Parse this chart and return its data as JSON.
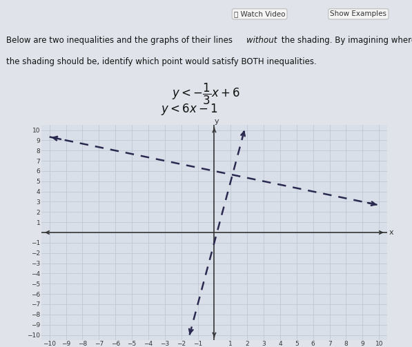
{
  "line1_slope": -0.3333333333333333,
  "line1_intercept": 6,
  "line2_slope": 6,
  "line2_intercept": -1,
  "xlim": [
    -10.5,
    10.5
  ],
  "ylim": [
    -10.5,
    10.5
  ],
  "xticks": [
    -10,
    -9,
    -8,
    -7,
    -6,
    -5,
    -4,
    -3,
    -2,
    -1,
    1,
    2,
    3,
    4,
    5,
    6,
    7,
    8,
    9,
    10
  ],
  "yticks": [
    -10,
    -9,
    -8,
    -7,
    -6,
    -5,
    -4,
    -3,
    -2,
    -1,
    1,
    2,
    3,
    4,
    5,
    6,
    7,
    8,
    9,
    10
  ],
  "grid_color": "#b8c4d0",
  "axis_color": "#333333",
  "line_color": "#2a2a50",
  "line_width": 1.8,
  "plot_bg_color": "#d8dfe8",
  "outer_bg_color": "#e0e4ea",
  "tick_fontsize": 6.5,
  "watch_video_text": "Watch Video",
  "show_examples_text": "Show Examples",
  "header_btn_color": "#f5f5f5",
  "header_btn_edge": "#bbbbbb",
  "text_color": "#111111",
  "desc_line1": "Below are two inequalities and the graphs of their lines ",
  "desc_italic": "without",
  "desc_line1b": " the shading. By imagining where",
  "desc_line2": "the shading should be, identify which point would satisfy BOTH inequalities.",
  "ineq1_label": "$y < -\\dfrac{1}{3}x + 6$",
  "ineq2_label": "$y < 6x - 1$"
}
